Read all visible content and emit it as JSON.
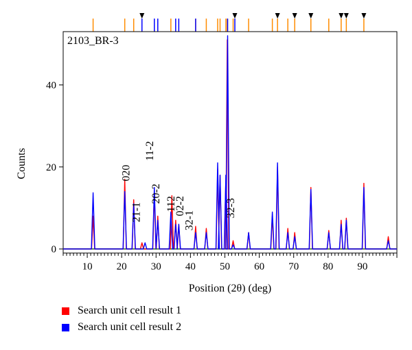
{
  "chart_data": {
    "type": "line",
    "sample_label": "2103_BR-3",
    "xlabel": "Position (2θ) (deg)",
    "ylabel": "Counts",
    "xlim": [
      3,
      100
    ],
    "ylim": [
      -1,
      53
    ],
    "x_ticks": [
      10,
      20,
      30,
      40,
      50,
      60,
      70,
      80,
      90
    ],
    "y_ticks": [
      0,
      20,
      40
    ],
    "grid": false,
    "legend_position": "bottom-left",
    "colors": {
      "series1": "#ff0000",
      "series2": "#0000ff",
      "background_fit": "#2e7d32",
      "reflection_tick": "#ff8c00",
      "marker_tick": "#0000ff",
      "arrow": "#000000"
    },
    "series": [
      {
        "name": "Search unit cell result 1",
        "peaks": [
          [
            11.7,
            8
          ],
          [
            20.9,
            17
          ],
          [
            23.5,
            12
          ],
          [
            25.9,
            1.5
          ],
          [
            29.5,
            14
          ],
          [
            30.5,
            8
          ],
          [
            34.6,
            13
          ],
          [
            35.7,
            7
          ],
          [
            36.6,
            6
          ],
          [
            41.5,
            5.5
          ],
          [
            44.6,
            5
          ],
          [
            47.9,
            19.5
          ],
          [
            48.6,
            18
          ],
          [
            50.3,
            18
          ],
          [
            50.7,
            51
          ],
          [
            52.4,
            2
          ],
          [
            56.9,
            4
          ],
          [
            63.8,
            8
          ],
          [
            65.3,
            20
          ],
          [
            68.3,
            5
          ],
          [
            70.3,
            4
          ],
          [
            75.0,
            15
          ],
          [
            80.2,
            4.5
          ],
          [
            83.8,
            7
          ],
          [
            85.3,
            7.5
          ],
          [
            90.4,
            16
          ],
          [
            97.5,
            3
          ]
        ]
      },
      {
        "name": "Search unit cell result 2",
        "peaks": [
          [
            11.7,
            13.7
          ],
          [
            20.9,
            14
          ],
          [
            23.5,
            11
          ],
          [
            26.8,
            1.5
          ],
          [
            29.5,
            15
          ],
          [
            30.5,
            7
          ],
          [
            34.3,
            9
          ],
          [
            35.7,
            6
          ],
          [
            36.6,
            6
          ],
          [
            41.5,
            4
          ],
          [
            44.6,
            4
          ],
          [
            47.9,
            21
          ],
          [
            48.6,
            18
          ],
          [
            50.3,
            18
          ],
          [
            50.8,
            52
          ],
          [
            52.4,
            1
          ],
          [
            56.9,
            4
          ],
          [
            63.8,
            9
          ],
          [
            65.3,
            21
          ],
          [
            68.3,
            4
          ],
          [
            70.3,
            3
          ],
          [
            75.0,
            14.5
          ],
          [
            80.2,
            4
          ],
          [
            83.8,
            6
          ],
          [
            85.3,
            7
          ],
          [
            90.4,
            15
          ],
          [
            97.5,
            2
          ]
        ]
      }
    ],
    "annotations": [
      {
        "text": "020",
        "x": 22.3,
        "y": 16.5
      },
      {
        "text": "21-1",
        "x": 25.3,
        "y": 6.5
      },
      {
        "text": "11-2",
        "x": 29.1,
        "y": 21.5
      },
      {
        "text": "20-2",
        "x": 30.9,
        "y": 11
      },
      {
        "text": "112",
        "x": 35.3,
        "y": 9
      },
      {
        "text": "02-2",
        "x": 37.9,
        "y": 8
      },
      {
        "text": "32-1",
        "x": 40.6,
        "y": 4.5
      },
      {
        "text": "32-3",
        "x": 52.7,
        "y": 7.5
      }
    ],
    "reflection_ticks_orange": [
      11.7,
      20.9,
      23.5,
      34.3,
      41.5,
      44.6,
      47.9,
      48.6,
      50.3,
      50.7,
      52.4,
      56.9,
      63.8,
      65.3,
      68.3,
      70.3,
      75.0,
      80.2,
      83.8,
      85.3,
      90.4
    ],
    "reflection_ticks_blue": [
      25.9,
      29.5,
      30.5,
      35.7,
      36.6,
      41.5,
      50.8,
      52.9
    ],
    "arrow_markers": [
      25.9,
      52.9,
      65.3,
      70.3,
      75.0,
      83.8,
      85.3,
      90.4
    ]
  },
  "legend": {
    "items": [
      {
        "label": "Search unit cell result 1",
        "color": "#ff0000"
      },
      {
        "label": "Search unit cell result 2",
        "color": "#0000ff"
      }
    ]
  }
}
